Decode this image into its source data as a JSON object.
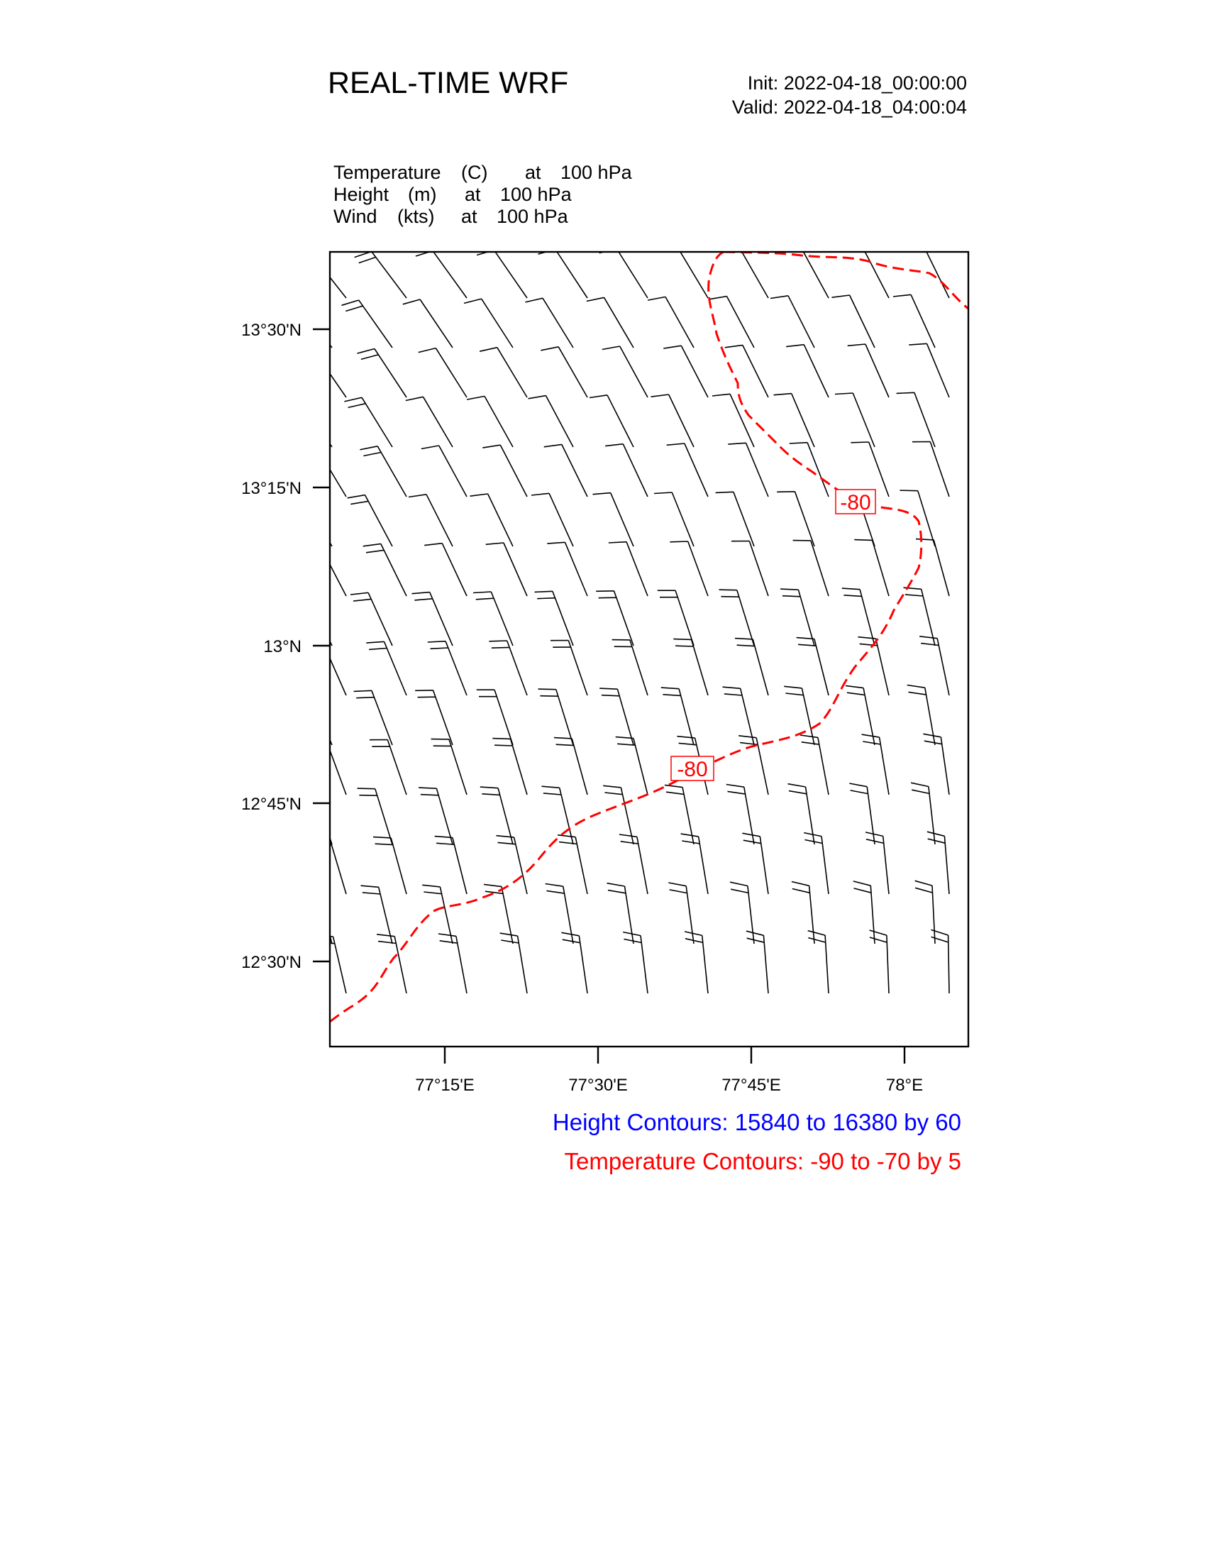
{
  "header": {
    "title": "REAL-TIME WRF",
    "init": "Init: 2022-04-18_00:00:00",
    "valid": "Valid: 2022-04-18_04:00:04"
  },
  "fields": [
    {
      "name": "Temperature",
      "unit": "(C)",
      "at": "at",
      "level": "100 hPa"
    },
    {
      "name": "Height",
      "unit": "(m)",
      "at": "at",
      "level": "100 hPa"
    },
    {
      "name": "Wind",
      "unit": "(kts)",
      "at": "at",
      "level": "100 hPa"
    }
  ],
  "map": {
    "lat_ticks": [
      "13°30'N",
      "13°15'N",
      "13°N",
      "12°45'N",
      "12°30'N"
    ],
    "lon_ticks": [
      "77°15'E",
      "77°30'E",
      "77°45'E",
      "78°E"
    ],
    "contour_labels": [
      "-80",
      "-80"
    ],
    "colors": {
      "temperature": "#ff0000",
      "height": "#0000ff",
      "barb": "#000000"
    },
    "barb_symbol": "wind-barb-icon"
  },
  "footer": {
    "height_contours": "Height Contours: 15840 to 16380 by 60",
    "temperature_contours": "Temperature Contours: -90 to -70 by 5"
  }
}
